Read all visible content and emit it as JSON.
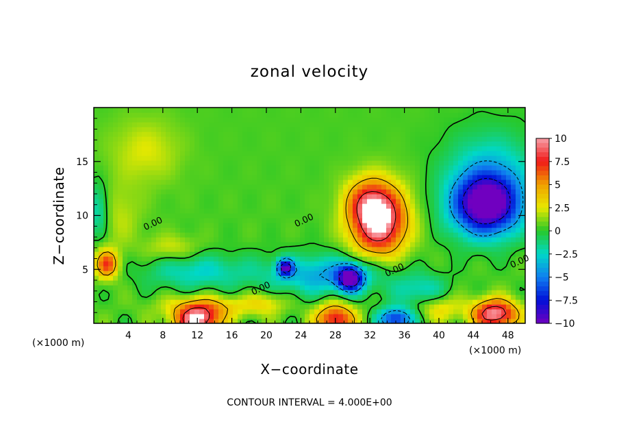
{
  "chart_data": {
    "type": "heatmap",
    "title": "zonal velocity",
    "xlabel": "X−coordinate",
    "ylabel": "Z−coordinate",
    "x_unit_label": "(×1000 m)",
    "xlim": [
      0,
      50
    ],
    "ylim": [
      0,
      20
    ],
    "x_ticks": [
      "4",
      "8",
      "12",
      "16",
      "20",
      "24",
      "28",
      "32",
      "36",
      "40",
      "44",
      "48"
    ],
    "x_tick_values": [
      4,
      8,
      12,
      16,
      20,
      24,
      28,
      32,
      36,
      40,
      44,
      48
    ],
    "y_ticks": [
      "5",
      "10",
      "15"
    ],
    "y_tick_values": [
      5,
      10,
      15
    ],
    "colorbar": {
      "min": -10,
      "max": 10,
      "labels": [
        "10",
        "7.5",
        "5",
        "2.5",
        "0",
        "−2.5",
        "−5",
        "−7.5",
        "−10"
      ],
      "values": [
        10,
        7.5,
        5,
        2.5,
        0,
        -2.5,
        -5,
        -7.5,
        -10
      ],
      "colors": [
        "#f8a0a8",
        "#f01818",
        "#f0a000",
        "#e8e800",
        "#28c828",
        "#00d8c8",
        "#1080f0",
        "#0010d8",
        "#7000c0"
      ]
    },
    "contour_labels": [
      {
        "text": "0.00",
        "x": 7,
        "y": 9
      },
      {
        "text": "0.00",
        "x": 24.5,
        "y": 9.3
      },
      {
        "text": "0.00",
        "x": 19.5,
        "y": 3
      },
      {
        "text": "0.00",
        "x": 35,
        "y": 4.7
      },
      {
        "text": "0.00",
        "x": 49.5,
        "y": 5.5
      }
    ],
    "features": [
      {
        "kind": "max",
        "x": 33,
        "y": 9.5,
        "value": 11
      },
      {
        "kind": "max",
        "x": 1.5,
        "y": 5.5,
        "value": 6
      },
      {
        "kind": "max",
        "x": 12,
        "y": 0.4,
        "value": 10
      },
      {
        "kind": "max",
        "x": 28,
        "y": 0.5,
        "value": 8
      },
      {
        "kind": "max",
        "x": 46.5,
        "y": 0.8,
        "value": 10
      },
      {
        "kind": "min",
        "x": 45.5,
        "y": 11,
        "value": -11
      },
      {
        "kind": "min",
        "x": 22.2,
        "y": 5.2,
        "value": -9
      },
      {
        "kind": "min",
        "x": 29.7,
        "y": 4.2,
        "value": -9
      },
      {
        "kind": "min",
        "x": 35,
        "y": 0.6,
        "value": -8
      }
    ],
    "footer": "CONTOUR INTERVAL = 4.000E+00"
  }
}
